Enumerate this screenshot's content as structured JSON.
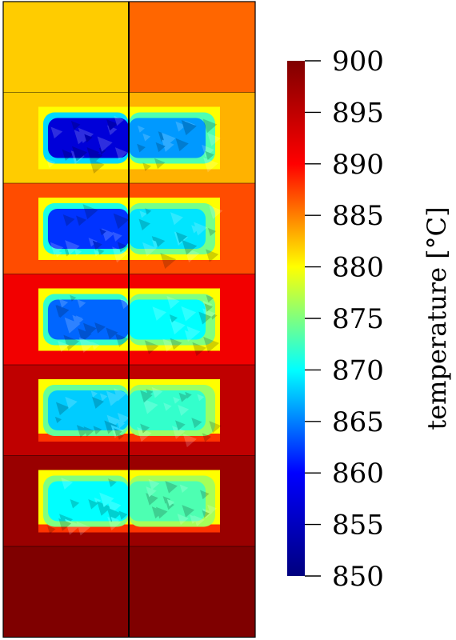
{
  "colorbar": {
    "title": "temperature [°C]",
    "min": 850,
    "max": 900,
    "ticks": [
      850,
      855,
      860,
      865,
      870,
      875,
      880,
      885,
      890,
      895,
      900
    ],
    "colormap": [
      "#00007f",
      "#0000ff",
      "#00ffff",
      "#ffff00",
      "#ff0000",
      "#7f0000"
    ]
  },
  "field": {
    "layers_top_to_bottom": [
      {
        "left": 882,
        "right": 886
      },
      {
        "left": 882,
        "right": 883
      },
      {
        "left": 887,
        "right": 887
      },
      {
        "left": 891,
        "right": 891
      },
      {
        "left": 895,
        "right": 895
      },
      {
        "left": 898,
        "right": 898
      },
      {
        "left": 900,
        "right": 900
      }
    ],
    "inclusions": [
      {
        "left": 857,
        "right": 866
      },
      {
        "left": 862,
        "right": 869
      },
      {
        "left": 864,
        "right": 870
      },
      {
        "left": 868,
        "right": 872
      },
      {
        "left": 870,
        "right": 873
      }
    ],
    "inclusion_rim": 880
  },
  "colors": {
    "mesh_line": "#000000",
    "inclusion_rim_hot": "#ff4000"
  }
}
